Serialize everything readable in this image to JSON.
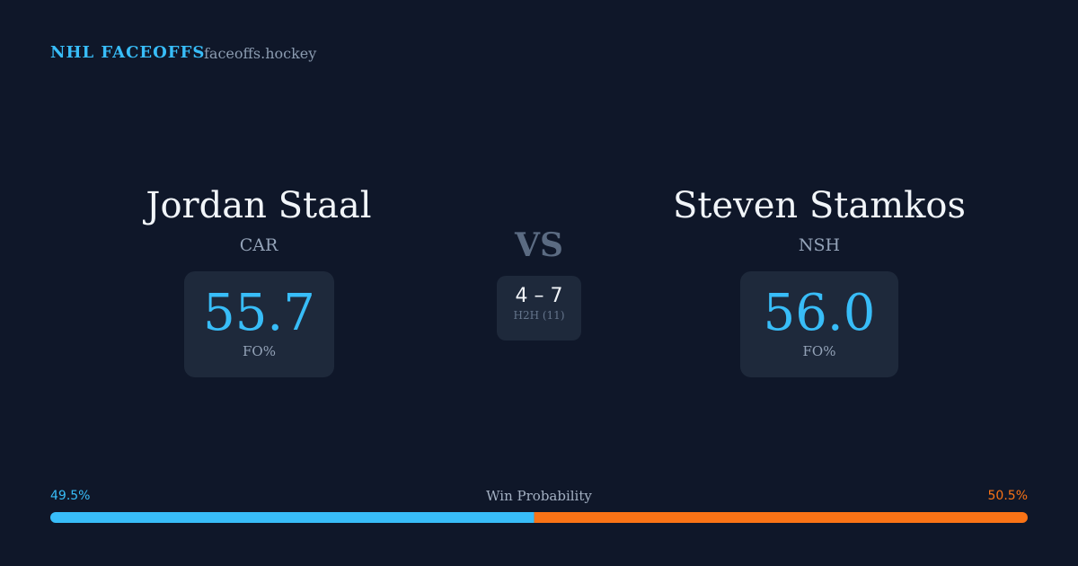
{
  "header": {
    "brand": "NHL FACEOFFS",
    "site": "faceoffs.hockey"
  },
  "players": [
    {
      "name": "Jordan Staal",
      "team": "CAR",
      "fo_pct": "55.7",
      "fo_label": "FO%"
    },
    {
      "name": "Steven Stamkos",
      "team": "NSH",
      "fo_pct": "56.0",
      "fo_label": "FO%"
    }
  ],
  "versus": "VS",
  "head_to_head": {
    "score": "4 – 7",
    "label": "H2H (11)"
  },
  "win_probability": {
    "label": "Win Probability",
    "values": [
      49.5,
      50.5
    ],
    "value_labels": [
      "49.5%",
      "50.5%"
    ],
    "colors": [
      "#38bdf8",
      "#f97316"
    ]
  }
}
